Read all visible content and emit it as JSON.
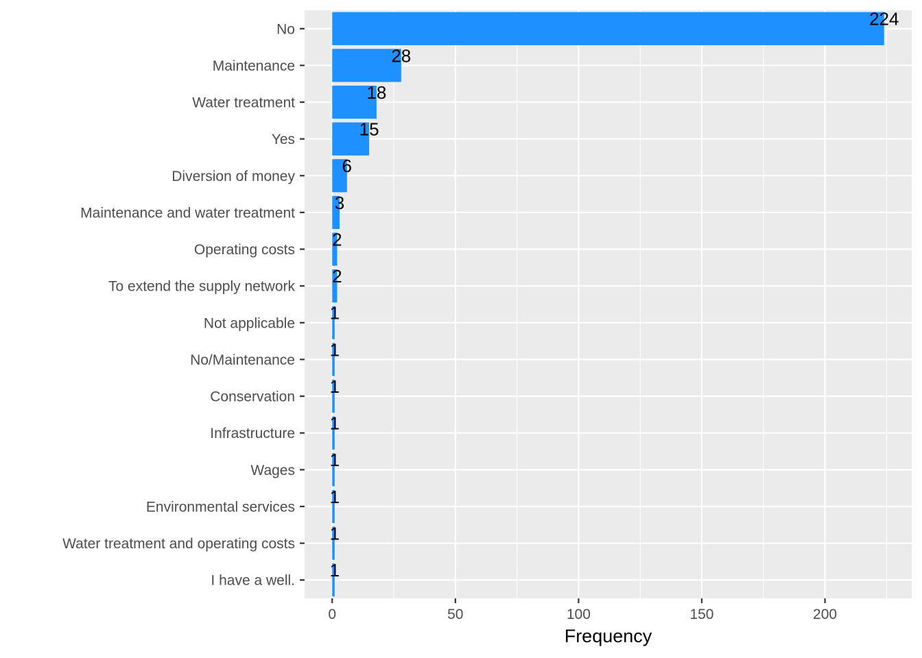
{
  "chart_data": {
    "type": "bar",
    "orientation": "horizontal",
    "categories": [
      "No",
      "Maintenance",
      "Water treatment",
      "Yes",
      "Diversion of money",
      "Maintenance and water treatment",
      "Operating costs",
      "To extend the supply network",
      "Not applicable",
      "No/Maintenance",
      "Conservation",
      "Infrastructure",
      "Wages",
      "Environmental services",
      "Water treatment and operating costs",
      "I have a well."
    ],
    "values": [
      224,
      28,
      18,
      15,
      6,
      3,
      2,
      2,
      1,
      1,
      1,
      1,
      1,
      1,
      1,
      1
    ],
    "data_labels": [
      "224",
      "28",
      "18",
      "15",
      "6",
      "3",
      "2",
      "2",
      "1",
      "1",
      "1",
      "1",
      "1",
      "1",
      "1",
      "1"
    ],
    "title": "",
    "xlabel": "Frequency",
    "ylabel": "",
    "xlim": [
      -11.2,
      235.2
    ],
    "x_ticks": [
      0,
      50,
      100,
      150,
      200
    ],
    "x_tick_labels": [
      "0",
      "50",
      "100",
      "150",
      "200"
    ],
    "x_minor_ticks": [
      25,
      75,
      125,
      175,
      225
    ],
    "grid": true,
    "legend": "none",
    "colors": {
      "bar": "#1E90FF",
      "panel_background": "#EBEBEB",
      "grid": "#FFFFFF",
      "tick_text": "#4D4D4D",
      "data_label_text": "#000000"
    }
  }
}
